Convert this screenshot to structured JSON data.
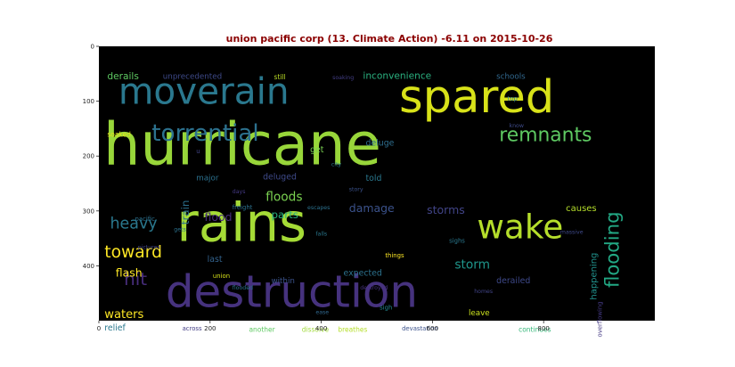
{
  "chart_data": {
    "type": "wordcloud",
    "title": "union pacific corp (13. Climate Action) -6.11 on 2015-10-26",
    "xlim": [
      0,
      1000
    ],
    "ylim": [
      500,
      0
    ],
    "x_ticks": [
      0,
      200,
      400,
      600,
      800
    ],
    "y_ticks": [
      0,
      100,
      200,
      300,
      400
    ],
    "background": "#000000",
    "words": [
      {
        "text": "hurricane",
        "x": 8,
        "y": 215,
        "size": 105,
        "color": "#98d63a"
      },
      {
        "text": "rains",
        "x": 140,
        "y": 355,
        "size": 95,
        "color": "#a5db36"
      },
      {
        "text": "destruction",
        "x": 120,
        "y": 475,
        "size": 80,
        "color": "#46327e"
      },
      {
        "text": "spared",
        "x": 540,
        "y": 120,
        "size": 82,
        "color": "#d8e219"
      },
      {
        "text": "moverain",
        "x": 35,
        "y": 105,
        "size": 65,
        "color": "#2a788e"
      },
      {
        "text": "wake",
        "x": 680,
        "y": 350,
        "size": 60,
        "color": "#b5de2b"
      },
      {
        "text": "torrential",
        "x": 95,
        "y": 172,
        "size": 42,
        "color": "#2c718e"
      },
      {
        "text": "remnants",
        "x": 720,
        "y": 173,
        "size": 35,
        "color": "#5ec962"
      },
      {
        "text": "flooding",
        "x": 935,
        "y": 440,
        "size": 34,
        "color": "#22a884",
        "rotate": -90
      },
      {
        "text": "toward",
        "x": 10,
        "y": 385,
        "size": 30,
        "color": "#fde725"
      },
      {
        "text": "heavy",
        "x": 20,
        "y": 332,
        "size": 28,
        "color": "#2a788e"
      },
      {
        "text": "hit",
        "x": 45,
        "y": 435,
        "size": 32,
        "color": "#472d7b"
      },
      {
        "text": "floods",
        "x": 300,
        "y": 282,
        "size": 22,
        "color": "#7ad151"
      },
      {
        "text": "damage",
        "x": 450,
        "y": 302,
        "size": 20,
        "color": "#3b528b"
      },
      {
        "text": "storms",
        "x": 590,
        "y": 305,
        "size": 20,
        "color": "#414487"
      },
      {
        "text": "storm",
        "x": 640,
        "y": 405,
        "size": 22,
        "color": "#1f968b"
      },
      {
        "text": "flash",
        "x": 30,
        "y": 420,
        "size": 20,
        "color": "#fde725"
      },
      {
        "text": "waters",
        "x": 10,
        "y": 495,
        "size": 21,
        "color": "#fde725"
      },
      {
        "text": "inconvenience",
        "x": 475,
        "y": 59,
        "size": 17,
        "color": "#2ab07f"
      },
      {
        "text": "schools",
        "x": 715,
        "y": 59,
        "size": 14,
        "color": "#31688e"
      },
      {
        "text": "derails",
        "x": 15,
        "y": 60,
        "size": 17,
        "color": "#5ec962"
      },
      {
        "text": "unprecedented",
        "x": 115,
        "y": 59,
        "size": 14,
        "color": "#3e4a89"
      },
      {
        "text": "deluge",
        "x": 480,
        "y": 181,
        "size": 15,
        "color": "#2e6e8e"
      },
      {
        "text": "get",
        "x": 380,
        "y": 193,
        "size": 15,
        "color": "#7ad151"
      },
      {
        "text": "deluged",
        "x": 295,
        "y": 243,
        "size": 15,
        "color": "#3e4a89"
      },
      {
        "text": "told",
        "x": 480,
        "y": 245,
        "size": 15,
        "color": "#2a788e"
      },
      {
        "text": "major",
        "x": 175,
        "y": 244,
        "size": 14,
        "color": "#2c718e"
      },
      {
        "text": "parts",
        "x": 310,
        "y": 313,
        "size": 19,
        "color": "#29af7f"
      },
      {
        "text": "causes",
        "x": 840,
        "y": 300,
        "size": 16,
        "color": "#b5de2b"
      },
      {
        "text": "happening",
        "x": 895,
        "y": 462,
        "size": 16,
        "color": "#21918c",
        "rotate": -90
      },
      {
        "text": "flood",
        "x": 190,
        "y": 318,
        "size": 20,
        "color": "#472c7a"
      },
      {
        "text": "train",
        "x": 162,
        "y": 325,
        "size": 19,
        "color": "#2c718e",
        "rotate": -90
      },
      {
        "text": "expected",
        "x": 440,
        "y": 418,
        "size": 15,
        "color": "#2c728e"
      },
      {
        "text": "derailed",
        "x": 715,
        "y": 432,
        "size": 15,
        "color": "#3e4989"
      },
      {
        "text": "last",
        "x": 195,
        "y": 393,
        "size": 15,
        "color": "#33638d"
      },
      {
        "text": "within",
        "x": 310,
        "y": 432,
        "size": 14,
        "color": "#3b528b"
      },
      {
        "text": "union",
        "x": 205,
        "y": 422,
        "size": 11,
        "color": "#d8e219"
      },
      {
        "text": "relief",
        "x": 10,
        "y": 518,
        "size": 15,
        "color": "#2a788e"
      },
      {
        "text": "leave",
        "x": 665,
        "y": 490,
        "size": 14,
        "color": "#cae11f"
      },
      {
        "text": "continues",
        "x": 755,
        "y": 520,
        "size": 12,
        "color": "#35b779"
      },
      {
        "text": "overflowing",
        "x": 905,
        "y": 530,
        "size": 11,
        "color": "#443983",
        "rotate": -90
      },
      {
        "text": "across",
        "x": 150,
        "y": 518,
        "size": 11,
        "color": "#433e85"
      },
      {
        "text": "another",
        "x": 270,
        "y": 520,
        "size": 12,
        "color": "#5ec962"
      },
      {
        "text": "dissolve",
        "x": 365,
        "y": 520,
        "size": 12,
        "color": "#a0da39"
      },
      {
        "text": "breathes",
        "x": 430,
        "y": 520,
        "size": 12,
        "color": "#b5de2b"
      },
      {
        "text": "devastation",
        "x": 545,
        "y": 518,
        "size": 11,
        "color": "#3b528b"
      },
      {
        "text": "sigh",
        "x": 505,
        "y": 480,
        "size": 11,
        "color": "#24878e"
      },
      {
        "text": "ease",
        "x": 390,
        "y": 488,
        "size": 10,
        "color": "#31688e"
      },
      {
        "text": "flooded",
        "x": 240,
        "y": 443,
        "size": 10,
        "color": "#2c728e"
      },
      {
        "text": "destroyed",
        "x": 470,
        "y": 443,
        "size": 10,
        "color": "#46327e"
      },
      {
        "text": "homes",
        "x": 675,
        "y": 450,
        "size": 10,
        "color": "#414487"
      },
      {
        "text": "things",
        "x": 515,
        "y": 385,
        "size": 11,
        "color": "#fde725"
      },
      {
        "text": "sighs",
        "x": 630,
        "y": 358,
        "size": 11,
        "color": "#2a788e"
      },
      {
        "text": "massive",
        "x": 830,
        "y": 342,
        "size": 10,
        "color": "#3e4989"
      },
      {
        "text": "falls",
        "x": 390,
        "y": 345,
        "size": 10,
        "color": "#2a788e"
      },
      {
        "text": "pictures",
        "x": 70,
        "y": 369,
        "size": 10,
        "color": "#414487"
      },
      {
        "text": "pacific",
        "x": 65,
        "y": 318,
        "size": 11,
        "color": "#2c718e"
      },
      {
        "text": "gets",
        "x": 135,
        "y": 337,
        "size": 10,
        "color": "#2c728e"
      },
      {
        "text": "freight",
        "x": 240,
        "y": 297,
        "size": 11,
        "color": "#2c718e"
      },
      {
        "text": "days",
        "x": 240,
        "y": 268,
        "size": 10,
        "color": "#443983"
      },
      {
        "text": "escapes",
        "x": 375,
        "y": 297,
        "size": 10,
        "color": "#2c718e"
      },
      {
        "text": "story",
        "x": 450,
        "y": 264,
        "size": 10,
        "color": "#3b528b"
      },
      {
        "text": "city",
        "x": 418,
        "y": 218,
        "size": 10,
        "color": "#2a788e"
      },
      {
        "text": "still",
        "x": 315,
        "y": 60,
        "size": 12,
        "color": "#bddf26"
      },
      {
        "text": "soaking",
        "x": 420,
        "y": 60,
        "size": 10,
        "color": "#433e85"
      },
      {
        "text": "soaked",
        "x": 15,
        "y": 165,
        "size": 12,
        "color": "#e5e419"
      },
      {
        "text": "u",
        "x": 175,
        "y": 195,
        "size": 11,
        "color": "#414487"
      },
      {
        "text": "top",
        "x": 735,
        "y": 99,
        "size": 11,
        "color": "#2a788e"
      },
      {
        "text": "know",
        "x": 738,
        "y": 148,
        "size": 10,
        "color": "#3e4a89"
      }
    ]
  }
}
